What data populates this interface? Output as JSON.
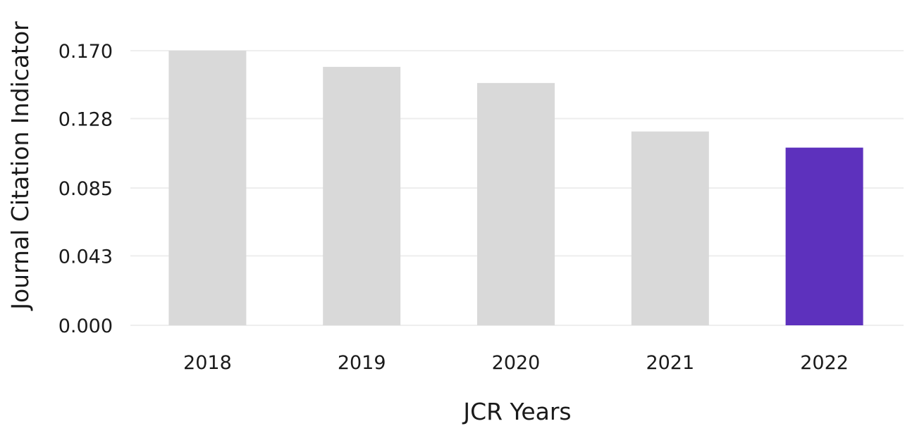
{
  "chart_data": {
    "type": "bar",
    "categories": [
      "2018",
      "2019",
      "2020",
      "2021",
      "2022"
    ],
    "values": [
      0.17,
      0.16,
      0.15,
      0.12,
      0.11
    ],
    "xlabel": "JCR Years",
    "ylabel": "Journal Citation Indicator",
    "ylim": [
      0,
      0.17
    ],
    "yticks": [
      "0.000",
      "0.043",
      "0.085",
      "0.128",
      "0.170"
    ],
    "grid": true,
    "bar_colors": [
      "#d9d9d9",
      "#d9d9d9",
      "#d9d9d9",
      "#d9d9d9",
      "#5d31bd"
    ],
    "highlight_category": "2022"
  }
}
